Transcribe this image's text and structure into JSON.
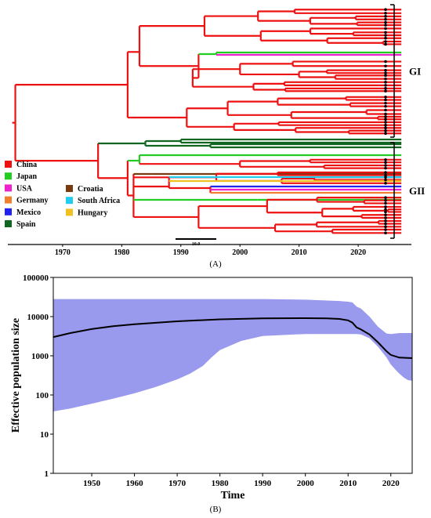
{
  "chart_data": [
    {
      "panel": "(A)",
      "type": "tree",
      "x": {
        "ticks": [
          1970,
          1980,
          1990,
          2000,
          2010,
          2020
        ],
        "range": [
          1961,
          2029
        ]
      },
      "scale_bar_label": "10.0",
      "clades": [
        {
          "label": "GI"
        },
        {
          "label": "GII"
        }
      ],
      "legend": {
        "placement": "bottom-left",
        "items": [
          {
            "label": "China",
            "color": "#ee1111"
          },
          {
            "label": "Japan",
            "color": "#22cc22"
          },
          {
            "label": "USA",
            "color": "#ee22cc"
          },
          {
            "label": "Germany",
            "color": "#f08030"
          },
          {
            "label": "Mexico",
            "color": "#2222ee"
          },
          {
            "label": "Spain",
            "color": "#116622"
          },
          {
            "label": "Croatia",
            "color": "#7a3a10"
          },
          {
            "label": "South Africa",
            "color": "#22ccee"
          },
          {
            "label": "Hungary",
            "color": "#f0c020"
          }
        ]
      }
    },
    {
      "panel": "(B)",
      "type": "area",
      "xlabel": "Time",
      "ylabel": "Effective population size",
      "yscale": "log",
      "xlim": [
        1941,
        2025
      ],
      "ylim": [
        1,
        100000
      ],
      "xticks": [
        1950,
        1960,
        1970,
        1980,
        1990,
        2000,
        2010,
        2020
      ],
      "yticks": [
        1,
        10,
        100,
        1000,
        10000,
        100000
      ],
      "ytick_labels": [
        "1",
        "10",
        "100",
        "1000",
        "10000",
        "100000"
      ],
      "series": [
        {
          "role": "median",
          "color": "#000000",
          "x": [
            1941,
            1945,
            1950,
            1955,
            1960,
            1970,
            1980,
            1990,
            2000,
            2005,
            2008,
            2010,
            2011,
            2012,
            2013,
            2015,
            2017,
            2019,
            2020,
            2022,
            2025
          ],
          "values": [
            3000,
            3800,
            4800,
            5700,
            6400,
            7600,
            8500,
            9000,
            9100,
            9000,
            8700,
            8000,
            7000,
            5300,
            4700,
            3500,
            2200,
            1300,
            1050,
            900,
            870
          ]
        },
        {
          "role": "95% HPD interval",
          "color": "#9999ee",
          "x": [
            1941,
            1945,
            1950,
            1955,
            1960,
            1965,
            1970,
            1973,
            1976,
            1978,
            1980,
            1985,
            1990,
            2000,
            2008,
            2010,
            2011,
            2012,
            2013,
            2015,
            2017,
            2019,
            2020,
            2021,
            2022,
            2023,
            2024,
            2025
          ],
          "upper": [
            28000,
            28000,
            28000,
            28000,
            28000,
            28000,
            28000,
            28000,
            28000,
            28000,
            28000,
            28000,
            28000,
            27000,
            25000,
            24000,
            23000,
            18000,
            16000,
            10000,
            5500,
            3700,
            3600,
            3700,
            3800,
            3800,
            3800,
            3800
          ],
          "lower": [
            38,
            45,
            60,
            80,
            110,
            160,
            250,
            350,
            550,
            900,
            1400,
            2400,
            3200,
            3600,
            3600,
            3600,
            3600,
            3600,
            3500,
            2800,
            1700,
            900,
            600,
            450,
            350,
            280,
            240,
            230
          ]
        }
      ]
    }
  ],
  "captions": {
    "a": "(A)",
    "b": "(B)"
  }
}
